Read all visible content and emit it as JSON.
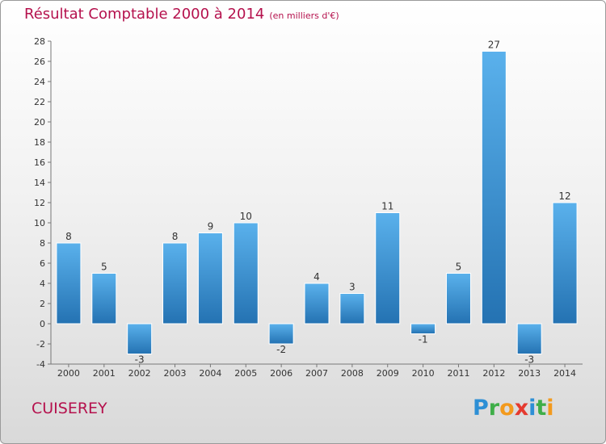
{
  "header": {
    "title": "Résultat Comptable 2000 à 2014",
    "subtitle": "(en milliers d'€)"
  },
  "commune": "CUISEREY",
  "brand": {
    "letters": [
      "P",
      "r",
      "o",
      "x",
      "i",
      "t",
      "i"
    ],
    "colors": [
      "#2d8fd5",
      "#3fae49",
      "#f39a1d",
      "#e53a2f",
      "#2d8fd5",
      "#3fae49",
      "#f39a1d"
    ]
  },
  "chart_data": {
    "type": "bar",
    "categories": [
      "2000",
      "2001",
      "2002",
      "2003",
      "2004",
      "2005",
      "2006",
      "2007",
      "2008",
      "2009",
      "2010",
      "2011",
      "2012",
      "2013",
      "2014"
    ],
    "values": [
      8,
      5,
      -3,
      8,
      9,
      10,
      -2,
      4,
      3,
      11,
      -1,
      5,
      27,
      -3,
      12
    ],
    "ylim": [
      -4,
      28
    ],
    "yticks": [
      -4,
      -2,
      0,
      2,
      4,
      6,
      8,
      10,
      12,
      14,
      16,
      18,
      20,
      22,
      24,
      26,
      28
    ],
    "grid": false,
    "bar_color": "#3f93d2"
  }
}
